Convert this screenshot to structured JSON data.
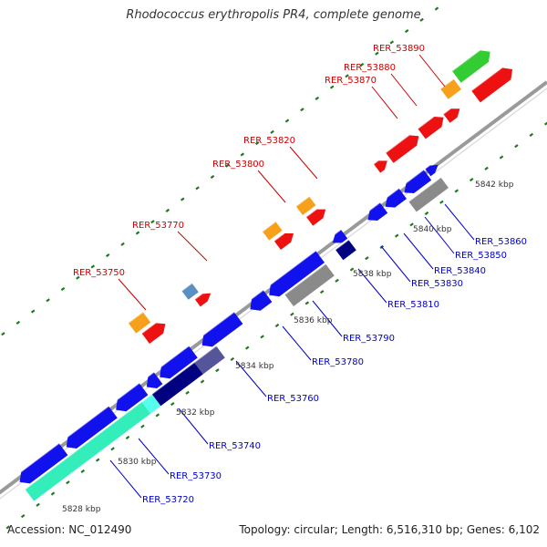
{
  "title": "Rhodococcus erythropolis PR4, complete genome",
  "footer": {
    "accession": "Accession: NC_012490",
    "summary": "Topology: circular; Length: 6,516,310 bp; Genes: 6,102"
  },
  "colors": {
    "backbone": "#9a9a9a",
    "forward_label": "#cc0000",
    "reverse_label": "#0000cc",
    "tick": "#1f7a1f",
    "red": "#ee1111",
    "orange": "#f7a01b",
    "green": "#33cc33",
    "steelblue": "#5a8fc4",
    "blue": "#1111ee",
    "gray": "#8a8a8a",
    "navy": "#000080",
    "slate": "#555599",
    "aqua": "#33eebb",
    "cyan": "#55ffee"
  },
  "kbp_labels": [
    "5828 kbp",
    "5830 kbp",
    "5832 kbp",
    "5834 kbp",
    "5836 kbp",
    "5838 kbp",
    "5840 kbp",
    "5842 kbp"
  ],
  "forward_labels": [
    "RER_53750",
    "RER_53770",
    "RER_53800",
    "RER_53820",
    "RER_53870",
    "RER_53880",
    "RER_53890"
  ],
  "reverse_labels": [
    "RER_53720",
    "RER_53730",
    "RER_53740",
    "RER_53760",
    "RER_53780",
    "RER_53790",
    "RER_53810",
    "RER_53830",
    "RER_53840",
    "RER_53850",
    "RER_53860"
  ]
}
